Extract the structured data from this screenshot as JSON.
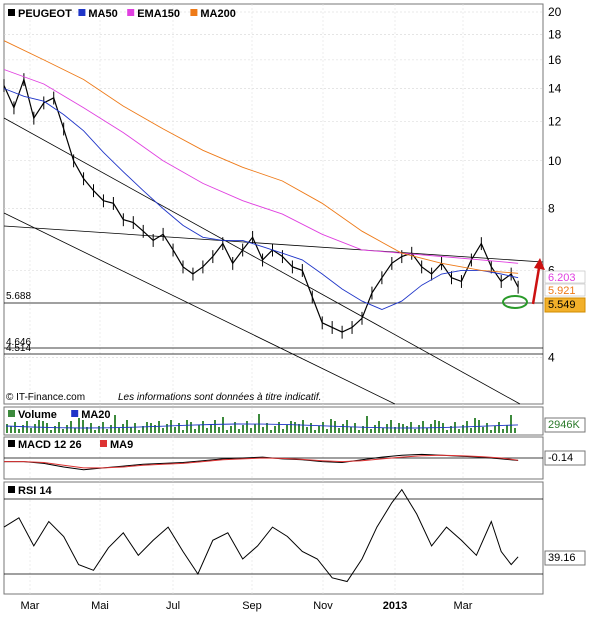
{
  "chart_data": [
    {
      "type": "line",
      "panel": "price",
      "scale": "log",
      "ylim": [
        3.6,
        20
      ],
      "y_ticks": [
        4,
        6,
        8,
        10,
        12,
        14,
        16,
        18,
        20
      ],
      "legend": [
        {
          "label": "PEUGEOT",
          "color": "#000000"
        },
        {
          "label": "MA50",
          "color": "#1f35c8"
        },
        {
          "label": "EMA150",
          "color": "#e040e0"
        },
        {
          "label": "MA200",
          "color": "#ee7a18"
        }
      ],
      "level_labels": [
        "5.688",
        "4.646",
        "4.514"
      ],
      "value_badges": [
        {
          "text": "6.203",
          "color": "#e040e0"
        },
        {
          "text": "5.921",
          "color": "#ee7a18"
        },
        {
          "text": "5.549",
          "color": "#000000"
        }
      ],
      "footer_left": "© IT-Finance.com",
      "footer_note": "Les informations sont données à titre indicatif.",
      "x_domain": [
        0,
        540
      ],
      "series": [
        {
          "name": "PEUGEOT",
          "x": [
            0,
            10,
            20,
            30,
            40,
            50,
            60,
            70,
            80,
            90,
            100,
            110,
            120,
            130,
            140,
            150,
            160,
            170,
            180,
            190,
            200,
            210,
            220,
            230,
            240,
            250,
            260,
            270,
            280,
            290,
            300,
            310,
            320,
            330,
            340,
            350,
            360,
            370,
            380,
            390,
            400,
            410,
            420,
            430,
            440,
            450,
            460,
            470,
            480,
            490,
            500,
            510,
            517
          ],
          "values": [
            14.2,
            12.8,
            14.6,
            12.2,
            13.1,
            13.4,
            11.6,
            10.0,
            9.2,
            8.7,
            8.3,
            8.2,
            7.6,
            7.5,
            7.2,
            6.9,
            7.1,
            6.6,
            6.1,
            5.9,
            6.1,
            6.4,
            6.8,
            6.2,
            6.6,
            7.0,
            6.3,
            6.6,
            6.4,
            6.1,
            6.0,
            5.3,
            4.7,
            4.6,
            4.5,
            4.6,
            4.8,
            5.4,
            5.8,
            6.2,
            6.4,
            6.5,
            6.1,
            5.9,
            6.2,
            5.8,
            5.7,
            6.3,
            6.8,
            6.1,
            5.7,
            5.9,
            5.55
          ]
        },
        {
          "name": "MA50",
          "x": [
            0,
            20,
            40,
            60,
            80,
            100,
            120,
            140,
            160,
            180,
            200,
            220,
            240,
            260,
            280,
            300,
            320,
            340,
            360,
            380,
            400,
            420,
            440,
            460,
            480,
            500,
            517
          ],
          "values": [
            14.0,
            13.5,
            13.2,
            12.4,
            11.5,
            10.4,
            9.5,
            8.7,
            8.0,
            7.4,
            7.0,
            6.9,
            6.9,
            6.7,
            6.5,
            6.3,
            5.9,
            5.5,
            5.2,
            5.0,
            5.2,
            5.6,
            5.9,
            6.0,
            6.0,
            5.9,
            5.8
          ]
        },
        {
          "name": "EMA150",
          "x": [
            0,
            40,
            80,
            120,
            160,
            200,
            240,
            280,
            320,
            360,
            400,
            440,
            480,
            517
          ],
          "values": [
            15.3,
            14.3,
            12.8,
            11.4,
            10.0,
            9.0,
            8.3,
            7.8,
            7.1,
            6.6,
            6.5,
            6.4,
            6.3,
            6.2
          ]
        },
        {
          "name": "MA200",
          "x": [
            0,
            40,
            80,
            120,
            160,
            200,
            240,
            280,
            320,
            360,
            400,
            440,
            480,
            517
          ],
          "values": [
            17.5,
            16.0,
            14.6,
            12.9,
            11.6,
            10.5,
            9.7,
            9.1,
            8.2,
            7.2,
            6.5,
            6.2,
            6.0,
            5.92
          ]
        }
      ]
    },
    {
      "type": "bar",
      "panel": "volume",
      "legend": [
        {
          "label": "Volume",
          "color": "#3c8a3c"
        },
        {
          "label": "MA20",
          "color": "#1f35c8"
        }
      ],
      "last_value": "2946K"
    },
    {
      "type": "line",
      "panel": "macd",
      "legend": [
        {
          "label": "MACD 12 26",
          "color": "#000000"
        },
        {
          "label": "MA9",
          "color": "#dd3333"
        }
      ],
      "last_value": "-0.14",
      "x": [
        0,
        20,
        40,
        60,
        80,
        100,
        120,
        140,
        160,
        180,
        200,
        220,
        240,
        260,
        280,
        300,
        320,
        340,
        360,
        380,
        400,
        420,
        440,
        460,
        480,
        500,
        517
      ],
      "values": [
        -0.2,
        -0.2,
        -0.3,
        -0.5,
        -0.65,
        -0.55,
        -0.45,
        -0.35,
        -0.3,
        -0.25,
        -0.15,
        -0.05,
        0.0,
        0.05,
        -0.05,
        -0.1,
        -0.2,
        -0.25,
        -0.1,
        0.05,
        0.15,
        0.2,
        0.15,
        0.1,
        0.05,
        -0.05,
        -0.14
      ],
      "signal": [
        -0.2,
        -0.2,
        -0.25,
        -0.4,
        -0.55,
        -0.55,
        -0.5,
        -0.4,
        -0.35,
        -0.3,
        -0.2,
        -0.1,
        -0.05,
        0.0,
        -0.02,
        -0.08,
        -0.15,
        -0.2,
        -0.15,
        -0.05,
        0.05,
        0.12,
        0.15,
        0.12,
        0.08,
        0.0,
        -0.12
      ]
    },
    {
      "type": "line",
      "panel": "rsi",
      "legend": [
        {
          "label": "RSI 14",
          "color": "#000000"
        }
      ],
      "last_value": "39.16",
      "ylim": [
        20,
        80
      ],
      "levels": [
        70,
        30
      ],
      "x": [
        0,
        15,
        30,
        45,
        60,
        75,
        90,
        105,
        120,
        135,
        150,
        165,
        180,
        195,
        210,
        225,
        240,
        255,
        270,
        285,
        300,
        315,
        330,
        345,
        360,
        375,
        390,
        400,
        415,
        430,
        445,
        460,
        475,
        490,
        500,
        510,
        517
      ],
      "values": [
        55,
        60,
        45,
        58,
        50,
        35,
        32,
        44,
        52,
        40,
        48,
        55,
        42,
        30,
        48,
        52,
        38,
        45,
        55,
        50,
        42,
        38,
        28,
        26,
        38,
        55,
        68,
        75,
        62,
        45,
        55,
        48,
        40,
        58,
        42,
        35,
        39.16
      ]
    }
  ],
  "x_axis": {
    "labels": [
      "Mar",
      "Mai",
      "Jul",
      "Sep",
      "Nov",
      "2013",
      "Mar"
    ],
    "positions": [
      0,
      0,
      0,
      0,
      0,
      0,
      0
    ]
  }
}
